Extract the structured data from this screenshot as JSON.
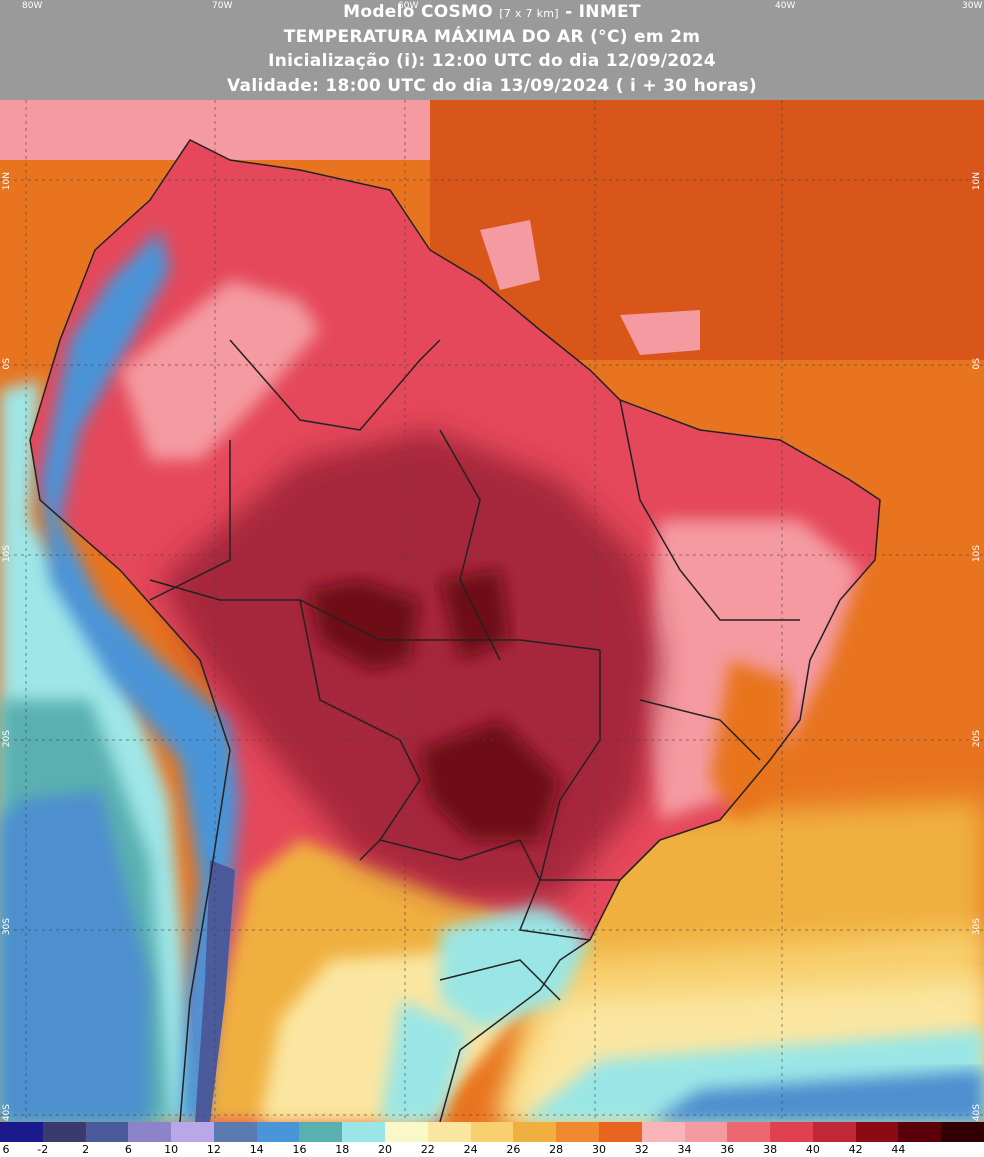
{
  "header": {
    "model_label": "Modelo COSMO",
    "resolution": "[7 x 7 km]",
    "institute": "- INMET",
    "variable": "TEMPERATURA MÁXIMA DO AR (°C) em 2m",
    "initialization": "Inicialização (i): 12:00 UTC do dia 12/09/2024",
    "validity": "Validade: 18:00 UTC do dia 13/09/2024 ( i + 30 horas)"
  },
  "map": {
    "lon_labels": [
      "80W",
      "70W",
      "60W",
      "40W",
      "30W"
    ],
    "lat_labels": [
      "10N",
      "0S",
      "10S",
      "20S",
      "30S",
      "40S"
    ],
    "colors": {
      "ocean_north": "#d8561a",
      "ocean_tropical": "#e8741f",
      "land_hot": "#e5485a",
      "land_very_hot": "#a6283a",
      "land_extreme": "#6e0b16",
      "pacific_cold": "#9fe6e8",
      "south_cold": "#4e8fcf",
      "border": "#222222"
    }
  },
  "legend": {
    "ticks": [
      "6",
      "-2",
      "2",
      "6",
      "10",
      "12",
      "14",
      "16",
      "18",
      "20",
      "22",
      "24",
      "26",
      "28",
      "30",
      "32",
      "34",
      "36",
      "38",
      "40",
      "42",
      "44"
    ],
    "colors": [
      "#1a1a8c",
      "#3a3a6e",
      "#4a5a9a",
      "#8c84c8",
      "#b8a8e8",
      "#5a7ab0",
      "#4a94d8",
      "#5ab0b0",
      "#9ae6e6",
      "#f8f8c8",
      "#fae6a0",
      "#f8d070",
      "#f0b040",
      "#f08a30",
      "#e86420",
      "#f8b4b8",
      "#f49aa0",
      "#ec6870",
      "#e04050",
      "#c02838",
      "#8c0a14",
      "#5a0008",
      "#300004"
    ]
  }
}
